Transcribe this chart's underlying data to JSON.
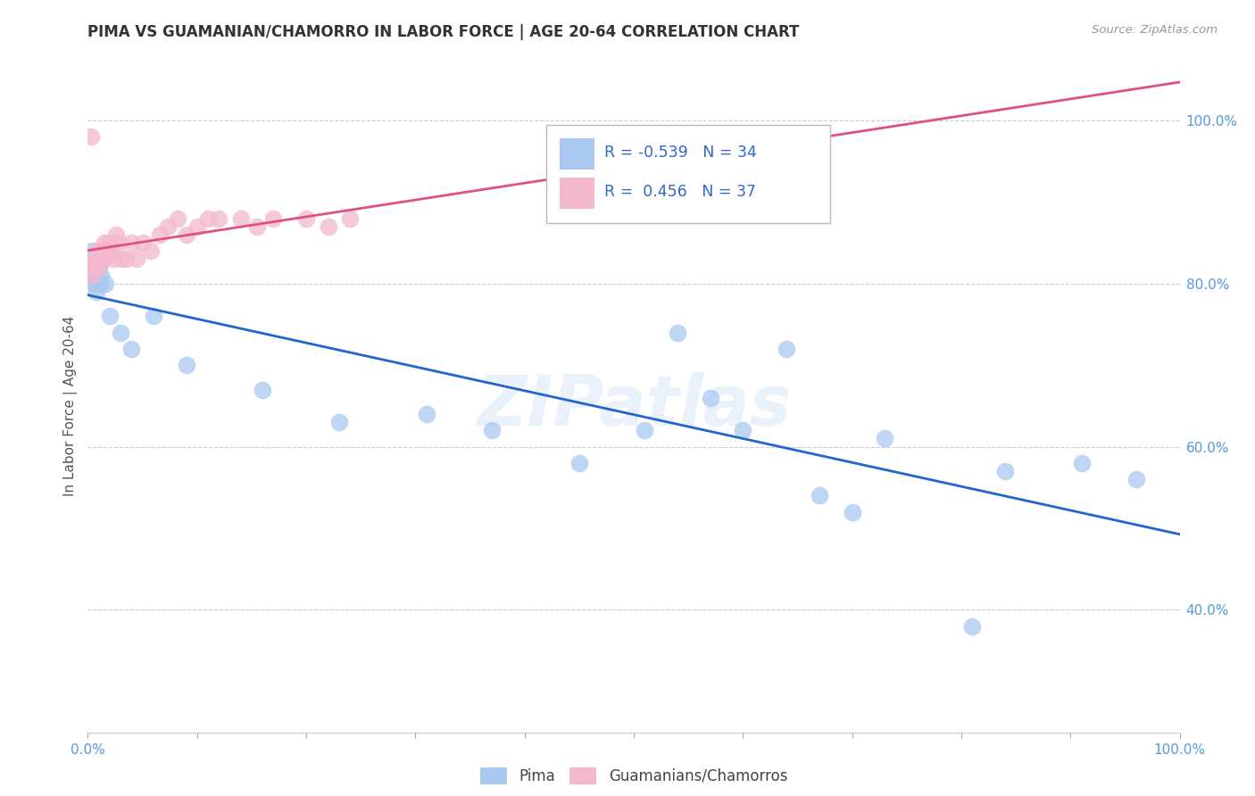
{
  "title": "PIMA VS GUAMANIAN/CHAMORRO IN LABOR FORCE | AGE 20-64 CORRELATION CHART",
  "source": "Source: ZipAtlas.com",
  "ylabel": "In Labor Force | Age 20-64",
  "xlim": [
    0.0,
    1.0
  ],
  "ylim": [
    0.25,
    1.05
  ],
  "xtick_positions": [
    0.0,
    0.1,
    0.2,
    0.3,
    0.4,
    0.5,
    0.6,
    0.7,
    0.8,
    0.9,
    1.0
  ],
  "xtick_labels": [
    "0.0%",
    "",
    "",
    "",
    "",
    "",
    "",
    "",
    "",
    "",
    "100.0%"
  ],
  "ytick_positions": [
    0.4,
    0.6,
    0.8,
    1.0
  ],
  "ytick_labels": [
    "40.0%",
    "60.0%",
    "80.0%",
    "100.0%"
  ],
  "pima_color": "#a8c8f0",
  "guam_color": "#f4b8cc",
  "pima_line_color": "#2266cc",
  "guam_line_color": "#e05080",
  "legend_pima_R": "-0.539",
  "legend_pima_N": "34",
  "legend_guam_R": "0.456",
  "legend_guam_N": "37",
  "legend_label_pima": "Pima",
  "legend_label_guam": "Guamanians/Chamorros",
  "watermark": "ZIPatlas",
  "pima_x": [
    0.003,
    0.004,
    0.005,
    0.006,
    0.007,
    0.008,
    0.009,
    0.01,
    0.011,
    0.012,
    0.014,
    0.016,
    0.02,
    0.03,
    0.04,
    0.06,
    0.09,
    0.16,
    0.23,
    0.31,
    0.37,
    0.45,
    0.51,
    0.54,
    0.57,
    0.6,
    0.64,
    0.67,
    0.7,
    0.73,
    0.81,
    0.84,
    0.91,
    0.96
  ],
  "pima_y": [
    0.81,
    0.84,
    0.8,
    0.83,
    0.82,
    0.79,
    0.8,
    0.82,
    0.8,
    0.81,
    0.83,
    0.8,
    0.76,
    0.74,
    0.72,
    0.76,
    0.7,
    0.67,
    0.63,
    0.64,
    0.62,
    0.58,
    0.62,
    0.74,
    0.66,
    0.62,
    0.72,
    0.54,
    0.52,
    0.61,
    0.38,
    0.57,
    0.58,
    0.56
  ],
  "guam_x": [
    0.003,
    0.004,
    0.005,
    0.006,
    0.007,
    0.008,
    0.009,
    0.01,
    0.011,
    0.012,
    0.013,
    0.015,
    0.017,
    0.019,
    0.021,
    0.023,
    0.026,
    0.028,
    0.03,
    0.035,
    0.04,
    0.045,
    0.05,
    0.058,
    0.066,
    0.073,
    0.082,
    0.09,
    0.1,
    0.11,
    0.12,
    0.14,
    0.155,
    0.17,
    0.2,
    0.22,
    0.24
  ],
  "guam_y": [
    0.98,
    0.81,
    0.82,
    0.83,
    0.82,
    0.83,
    0.84,
    0.82,
    0.84,
    0.83,
    0.84,
    0.85,
    0.84,
    0.85,
    0.84,
    0.83,
    0.86,
    0.85,
    0.83,
    0.83,
    0.85,
    0.83,
    0.85,
    0.84,
    0.86,
    0.87,
    0.88,
    0.86,
    0.87,
    0.88,
    0.88,
    0.88,
    0.87,
    0.88,
    0.88,
    0.87,
    0.88
  ]
}
